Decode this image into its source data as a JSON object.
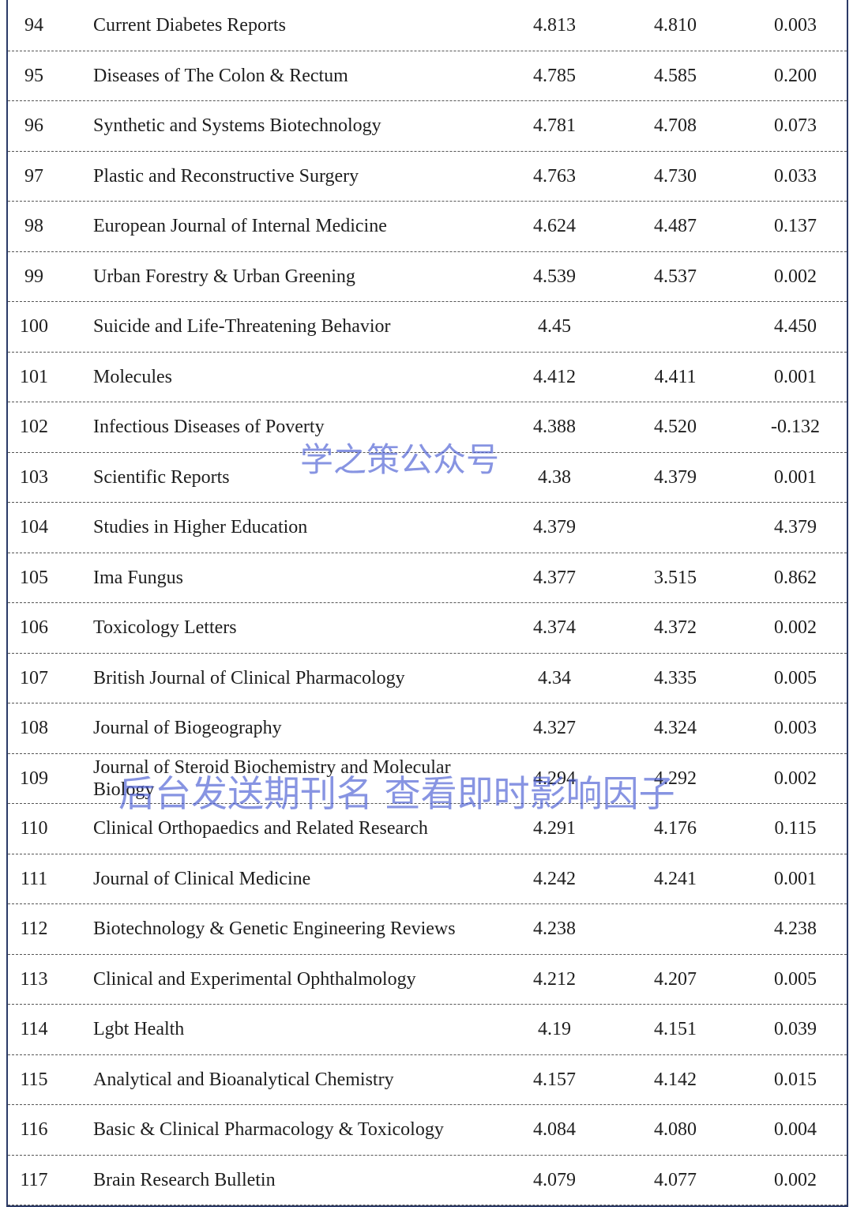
{
  "table": {
    "rows": [
      [
        "94",
        "Current Diabetes Reports",
        "4.813",
        "4.810",
        "0.003"
      ],
      [
        "95",
        "Diseases of The Colon & Rectum",
        "4.785",
        "4.585",
        "0.200"
      ],
      [
        "96",
        "Synthetic and Systems Biotechnology",
        "4.781",
        "4.708",
        "0.073"
      ],
      [
        "97",
        "Plastic and Reconstructive Surgery",
        "4.763",
        "4.730",
        "0.033"
      ],
      [
        "98",
        "European Journal of Internal Medicine",
        "4.624",
        "4.487",
        "0.137"
      ],
      [
        "99",
        "Urban Forestry & Urban Greening",
        "4.539",
        "4.537",
        "0.002"
      ],
      [
        "100",
        "Suicide and Life-Threatening Behavior",
        "4.45",
        null,
        "4.450"
      ],
      [
        "101",
        "Molecules",
        "4.412",
        "4.411",
        "0.001"
      ],
      [
        "102",
        "Infectious Diseases of Poverty",
        "4.388",
        "4.520",
        "-0.132"
      ],
      [
        "103",
        "Scientific Reports",
        "4.38",
        "4.379",
        "0.001"
      ],
      [
        "104",
        "Studies in Higher Education",
        "4.379",
        null,
        "4.379"
      ],
      [
        "105",
        "Ima Fungus",
        "4.377",
        "3.515",
        "0.862"
      ],
      [
        "106",
        "Toxicology Letters",
        "4.374",
        "4.372",
        "0.002"
      ],
      [
        "107",
        "British Journal of Clinical Pharmacology",
        "4.34",
        "4.335",
        "0.005"
      ],
      [
        "108",
        "Journal of Biogeography",
        "4.327",
        "4.324",
        "0.003"
      ],
      [
        "109",
        "Journal of Steroid Biochemistry and Molecular Biology",
        "4.294",
        "4.292",
        "0.002"
      ],
      [
        "110",
        "Clinical Orthopaedics and Related Research",
        "4.291",
        "4.176",
        "0.115"
      ],
      [
        "111",
        "Journal of Clinical Medicine",
        "4.242",
        "4.241",
        "0.001"
      ],
      [
        "112",
        "Biotechnology & Genetic Engineering Reviews",
        "4.238",
        null,
        "4.238"
      ],
      [
        "113",
        "Clinical and Experimental Ophthalmology",
        "4.212",
        "4.207",
        "0.005"
      ],
      [
        "114",
        "Lgbt Health",
        "4.19",
        "4.151",
        "0.039"
      ],
      [
        "115",
        "Analytical and Bioanalytical Chemistry",
        "4.157",
        "4.142",
        "0.015"
      ],
      [
        "116",
        "Basic & Clinical Pharmacology & Toxicology",
        "4.084",
        "4.080",
        "0.004"
      ],
      [
        "117",
        "Brain Research Bulletin",
        "4.079",
        "4.077",
        "0.002"
      ]
    ]
  },
  "watermarks": [
    "学之策公众号",
    "后台发送期刊名 查看即时影响因子"
  ]
}
